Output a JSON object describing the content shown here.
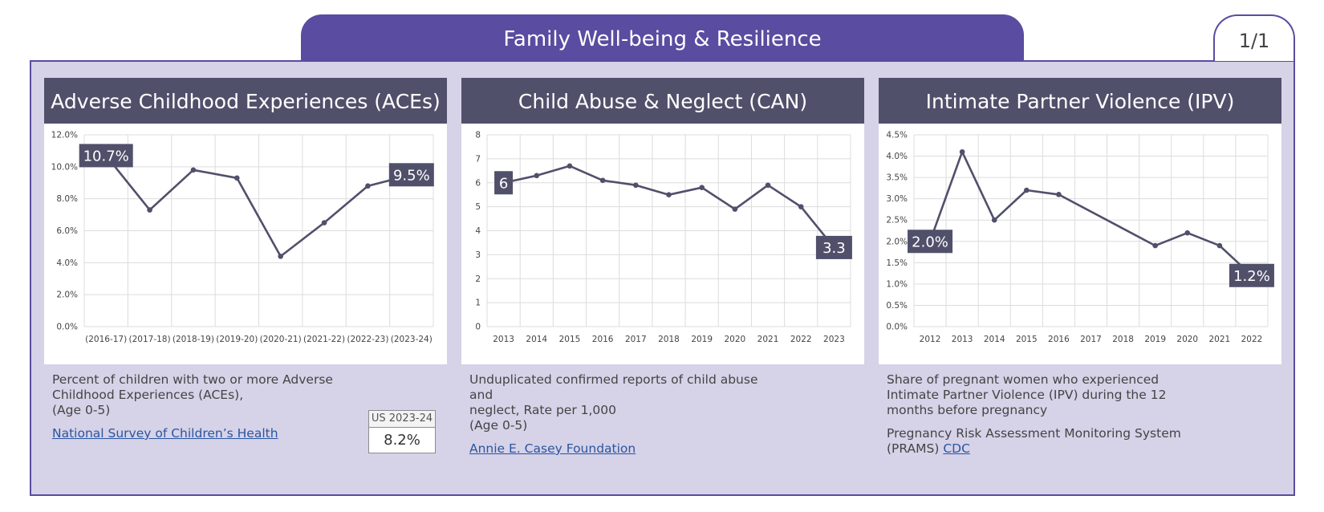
{
  "header": {
    "title": "Family Well-being & Resilience",
    "page_indicator": "1/1"
  },
  "theme": {
    "accent": "#5a4ca0",
    "panel_header": "#51506b",
    "line": "#51506b",
    "background": "#d6d2e8"
  },
  "panels": [
    {
      "title": "Adverse Childhood Experiences (ACEs)",
      "description": [
        "Percent of children with two or more Adverse",
        "Childhood Experiences (ACEs),",
        "(Age 0-5)"
      ],
      "source_link": "National Survey of Children’s Health",
      "us_comparison": {
        "label": "US 2023-24",
        "value": "8.2%"
      }
    },
    {
      "title": "Child Abuse & Neglect (CAN)",
      "description": [
        "Unduplicated confirmed reports of child abuse and",
        "neglect, Rate per 1,000",
        "(Age 0-5)"
      ],
      "source_link": "Annie E. Casey Foundation"
    },
    {
      "title": "Intimate Partner Violence (IPV)",
      "description": [
        "Share of pregnant women who experienced",
        "Intimate Partner Violence (IPV) during the 12",
        "months before pregnancy"
      ],
      "source_prefix": "Pregnancy Risk Assessment Monitoring System (PRAMS)",
      "source_link": "CDC"
    }
  ],
  "chart_data": [
    {
      "type": "line",
      "title": "Adverse Childhood Experiences (ACEs)",
      "categories": [
        "(2016-17)",
        "(2017-18)",
        "(2018-19)",
        "(2019-20)",
        "(2020-21)",
        "(2021-22)",
        "(2022-23)",
        "(2023-24)"
      ],
      "values": [
        10.7,
        7.3,
        9.8,
        9.3,
        4.4,
        6.5,
        8.8,
        9.5
      ],
      "ylim": [
        0,
        12
      ],
      "yticks": [
        0,
        2,
        4,
        6,
        8,
        10,
        12
      ],
      "ytick_labels": [
        "0.0%",
        "2.0%",
        "4.0%",
        "6.0%",
        "8.0%",
        "10.0%",
        "12.0%"
      ],
      "point_labels": [
        {
          "index": 0,
          "text": "10.7%"
        },
        {
          "index": 7,
          "text": "9.5%"
        }
      ],
      "grid": true,
      "legend": "none"
    },
    {
      "type": "line",
      "title": "Child Abuse & Neglect (CAN)",
      "categories": [
        "2013",
        "2014",
        "2015",
        "2016",
        "2017",
        "2018",
        "2019",
        "2020",
        "2021",
        "2022",
        "2023"
      ],
      "values": [
        6.0,
        6.3,
        6.7,
        6.1,
        5.9,
        5.5,
        5.8,
        4.9,
        5.9,
        5.0,
        3.3
      ],
      "ylim": [
        0,
        8
      ],
      "yticks": [
        0,
        1,
        2,
        3,
        4,
        5,
        6,
        7,
        8
      ],
      "ytick_labels": [
        "0",
        "1",
        "2",
        "3",
        "4",
        "5",
        "6",
        "7",
        "8"
      ],
      "point_labels": [
        {
          "index": 0,
          "text": "6"
        },
        {
          "index": 10,
          "text": "3.3"
        }
      ],
      "grid": true,
      "legend": "none"
    },
    {
      "type": "line",
      "title": "Intimate Partner Violence (IPV)",
      "categories": [
        "2012",
        "2013",
        "2014",
        "2015",
        "2016",
        "2017",
        "2018",
        "2019",
        "2020",
        "2021",
        "2022"
      ],
      "values": [
        2.0,
        4.1,
        2.5,
        3.2,
        3.1,
        null,
        null,
        1.9,
        2.2,
        1.9,
        1.2
      ],
      "ylim": [
        0,
        4.5
      ],
      "yticks": [
        0,
        0.5,
        1,
        1.5,
        2,
        2.5,
        3,
        3.5,
        4,
        4.5
      ],
      "ytick_labels": [
        "0.0%",
        "0.5%",
        "1.0%",
        "1.5%",
        "2.0%",
        "2.5%",
        "3.0%",
        "3.5%",
        "4.0%",
        "4.5%"
      ],
      "point_labels": [
        {
          "index": 0,
          "text": "2.0%"
        },
        {
          "index": 10,
          "text": "1.2%"
        }
      ],
      "grid": true,
      "legend": "none"
    }
  ]
}
